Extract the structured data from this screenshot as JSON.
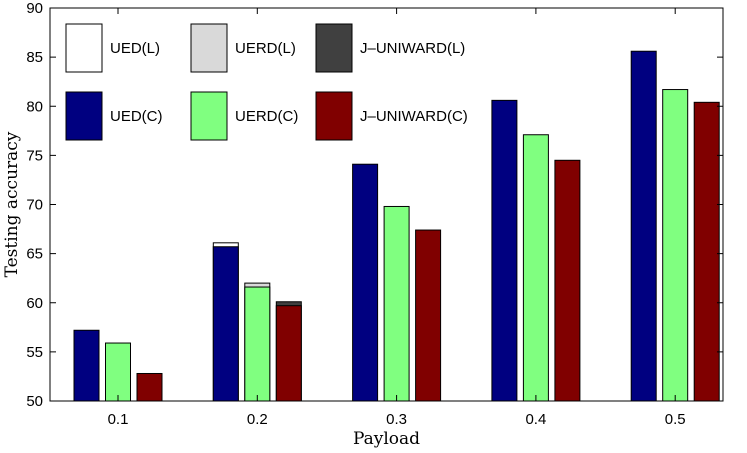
{
  "chart_data": {
    "type": "bar",
    "categories": [
      "0.1",
      "0.2",
      "0.3",
      "0.4",
      "0.5"
    ],
    "series": [
      {
        "name": "UED(L)",
        "values": [
          null,
          66.1,
          null,
          null,
          null
        ],
        "color": "#ffffff"
      },
      {
        "name": "UERD(L)",
        "values": [
          null,
          62.0,
          null,
          null,
          null
        ],
        "color": "#d9d9d9"
      },
      {
        "name": "J–UNIWARD(L)",
        "values": [
          null,
          60.1,
          null,
          null,
          null
        ],
        "color": "#404040"
      },
      {
        "name": "UED(C)",
        "values": [
          57.2,
          65.7,
          74.1,
          80.6,
          85.6
        ],
        "color": "#000080"
      },
      {
        "name": "UERD(C)",
        "values": [
          55.9,
          61.6,
          69.8,
          77.1,
          81.7
        ],
        "color": "#80ff80"
      },
      {
        "name": "J–UNIWARD(C)",
        "values": [
          52.8,
          59.7,
          67.4,
          74.5,
          80.4
        ],
        "color": "#800000"
      }
    ],
    "title": "",
    "xlabel": "Payload",
    "ylabel": "Testing accuracy",
    "ylim": [
      50,
      90
    ],
    "yticks": [
      "50",
      "55",
      "60",
      "65",
      "70",
      "75",
      "80",
      "85",
      "90"
    ],
    "grid": false,
    "legend_position": "top-left"
  }
}
